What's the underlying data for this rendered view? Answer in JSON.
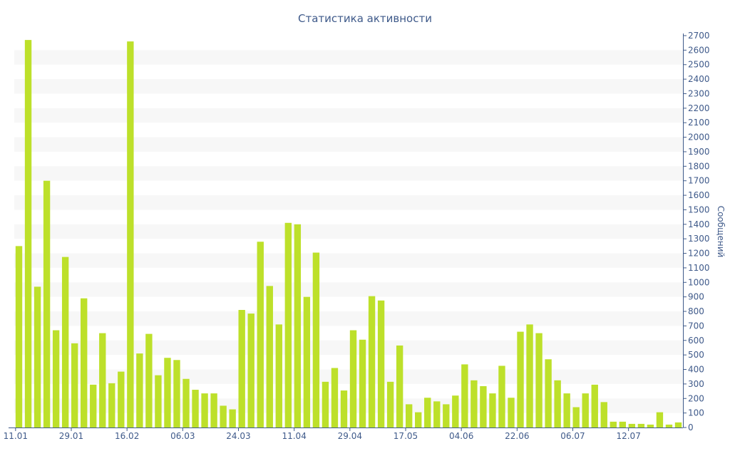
{
  "chart_data": {
    "type": "bar",
    "title": "Статистика активности",
    "xlabel": "",
    "ylabel": "Сообщений",
    "y_axis_position": "right",
    "ylim": [
      0,
      2700
    ],
    "y_ticks": [
      0,
      100,
      200,
      300,
      400,
      500,
      600,
      700,
      800,
      900,
      1000,
      1100,
      1200,
      1300,
      1400,
      1500,
      1600,
      1700,
      1800,
      1900,
      2000,
      2100,
      2200,
      2300,
      2400,
      2500,
      2600,
      2700
    ],
    "x_tick_labels": [
      {
        "label": "11.01",
        "index": 0
      },
      {
        "label": "29.01",
        "index": 6
      },
      {
        "label": "16.02",
        "index": 12
      },
      {
        "label": "06.03",
        "index": 18
      },
      {
        "label": "24.03",
        "index": 24
      },
      {
        "label": "11.04",
        "index": 30
      },
      {
        "label": "29.04",
        "index": 36
      },
      {
        "label": "17.05",
        "index": 42
      },
      {
        "label": "04.06",
        "index": 48
      },
      {
        "label": "22.06",
        "index": 54
      },
      {
        "label": "06.07",
        "index": 60
      },
      {
        "label": "12.07",
        "index": 66
      }
    ],
    "values": [
      1250,
      2670,
      970,
      1700,
      670,
      1175,
      580,
      890,
      295,
      650,
      305,
      385,
      2660,
      510,
      645,
      360,
      480,
      465,
      335,
      260,
      235,
      235,
      150,
      125,
      810,
      785,
      1280,
      975,
      710,
      1410,
      1400,
      900,
      1205,
      315,
      410,
      255,
      670,
      605,
      905,
      875,
      315,
      565,
      160,
      105,
      205,
      180,
      160,
      220,
      435,
      325,
      285,
      235,
      425,
      205,
      660,
      710,
      650,
      470,
      325,
      235,
      140,
      235,
      295,
      175,
      40,
      40,
      25,
      25,
      20,
      105,
      20,
      35
    ],
    "bar_color": "#bde02a",
    "grid": "alternating horizontal bands",
    "band_color": "#f7f7f7",
    "axis_color": "#3f5a8a"
  }
}
